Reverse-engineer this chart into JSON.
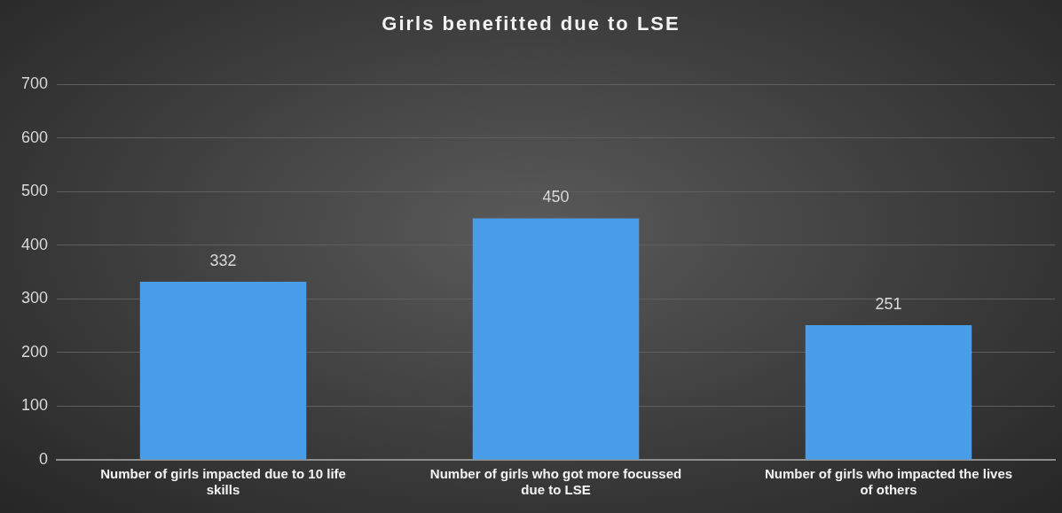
{
  "chart_data": {
    "type": "bar",
    "title": "Girls benefitted due to LSE",
    "categories": [
      "Number of girls impacted due to 10 life skills",
      "Number of girls who got more focussed due to LSE",
      "Number of girls who impacted the lives of others"
    ],
    "values": [
      332,
      450,
      251
    ],
    "color": "#4a9de8",
    "ylim": [
      0,
      700
    ],
    "yticks": [
      0,
      100,
      200,
      300,
      400,
      500,
      600,
      700
    ],
    "grid": "y",
    "data_labels": true
  }
}
